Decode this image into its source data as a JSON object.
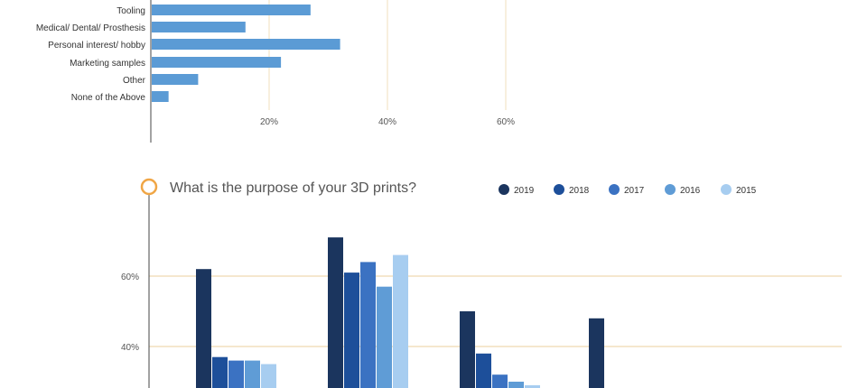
{
  "colors": {
    "c2019": "#1b355e",
    "c2018": "#1d4f9a",
    "c2017": "#3b72c2",
    "c2016": "#5f9cd6",
    "c2015": "#a7cdf0",
    "hbar": "#5b9bd5",
    "grid_accent": "#f2dfbd",
    "title_ring": "#f0a646"
  },
  "chart_data": [
    {
      "type": "bar",
      "orientation": "horizontal",
      "categories": [
        "Tooling",
        "Medical/ Dental/ Prosthesis",
        "Personal interest/ hobby",
        "Marketing samples",
        "Other",
        "None of the Above"
      ],
      "values": [
        27,
        16,
        32,
        22,
        8,
        3
      ],
      "xticks": [
        "20%",
        "40%",
        "60%"
      ],
      "xlim": [
        0,
        100
      ]
    },
    {
      "type": "bar",
      "title": "What is the purpose of your 3D prints?",
      "legend": [
        "2019",
        "2018",
        "2017",
        "2016",
        "2015"
      ],
      "legend_position": "top-right",
      "yticks": [
        "60%",
        "40%"
      ],
      "series": [
        {
          "name": "2019",
          "values": [
            62,
            71,
            50,
            48
          ]
        },
        {
          "name": "2018",
          "values": [
            37,
            61,
            38,
            null
          ]
        },
        {
          "name": "2017",
          "values": [
            36,
            64,
            32,
            null
          ]
        },
        {
          "name": "2016",
          "values": [
            36,
            57,
            30,
            null
          ]
        },
        {
          "name": "2015",
          "values": [
            35,
            66,
            29,
            null
          ]
        }
      ]
    }
  ]
}
